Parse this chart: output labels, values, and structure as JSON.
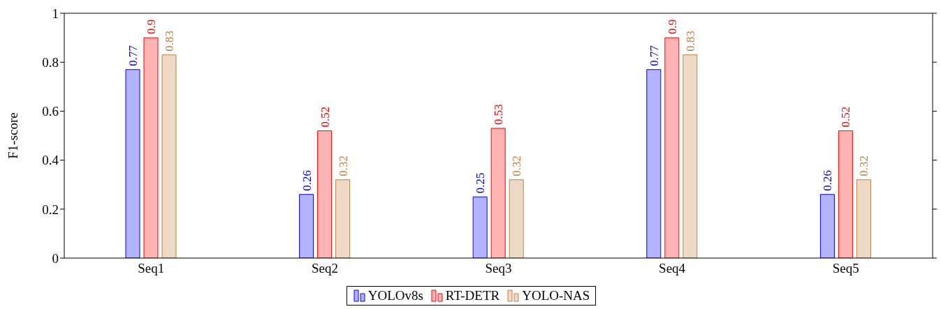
{
  "chart_data": {
    "type": "bar",
    "ylabel": "F1-score",
    "categories": [
      "Seq1",
      "Seq2",
      "Seq3",
      "Seq4",
      "Seq5"
    ],
    "series": [
      {
        "name": "YOLOv8s",
        "color": "#b3b3ff",
        "values": [
          0.77,
          0.26,
          0.25,
          0.77,
          0.26
        ]
      },
      {
        "name": "RT-DETR",
        "color": "#ffb3b3",
        "values": [
          0.9,
          0.52,
          0.53,
          0.9,
          0.52
        ]
      },
      {
        "name": "YOLO-NAS",
        "color": "#edd9c6",
        "values": [
          0.83,
          0.32,
          0.32,
          0.83,
          0.32
        ]
      }
    ],
    "ylim": [
      0,
      1
    ],
    "yticks": [
      0,
      0.2,
      0.4,
      0.6,
      0.8,
      1
    ],
    "data_labels": true,
    "legend": "bottom",
    "grid": false
  }
}
